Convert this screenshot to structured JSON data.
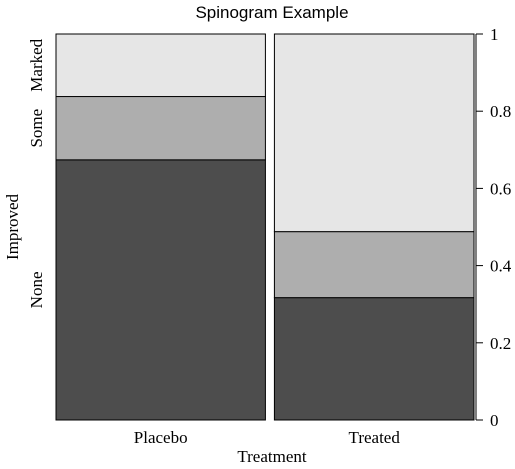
{
  "chart_data": {
    "type": "spinogram",
    "title": "Spinogram Example",
    "xlabel": "Treatment",
    "ylabel": "Improved",
    "categories": [
      "Placebo",
      "Treated"
    ],
    "category_widths": [
      0.512,
      0.488
    ],
    "levels": [
      "None",
      "Some",
      "Marked"
    ],
    "colors": {
      "None": "#4d4d4d",
      "Some": "#aeaeae",
      "Marked": "#e6e6e6"
    },
    "cumulative": {
      "Placebo": [
        0.674,
        0.838,
        1.0
      ],
      "Treated": [
        0.317,
        0.488,
        1.0
      ]
    },
    "right_axis": {
      "ylim": [
        0,
        1
      ],
      "ticks": [
        0,
        0.2,
        0.4,
        0.6,
        0.8,
        1
      ],
      "tick_labels": [
        "0",
        "0.2",
        "0.4",
        "0.6",
        "0.8",
        "1"
      ]
    }
  }
}
